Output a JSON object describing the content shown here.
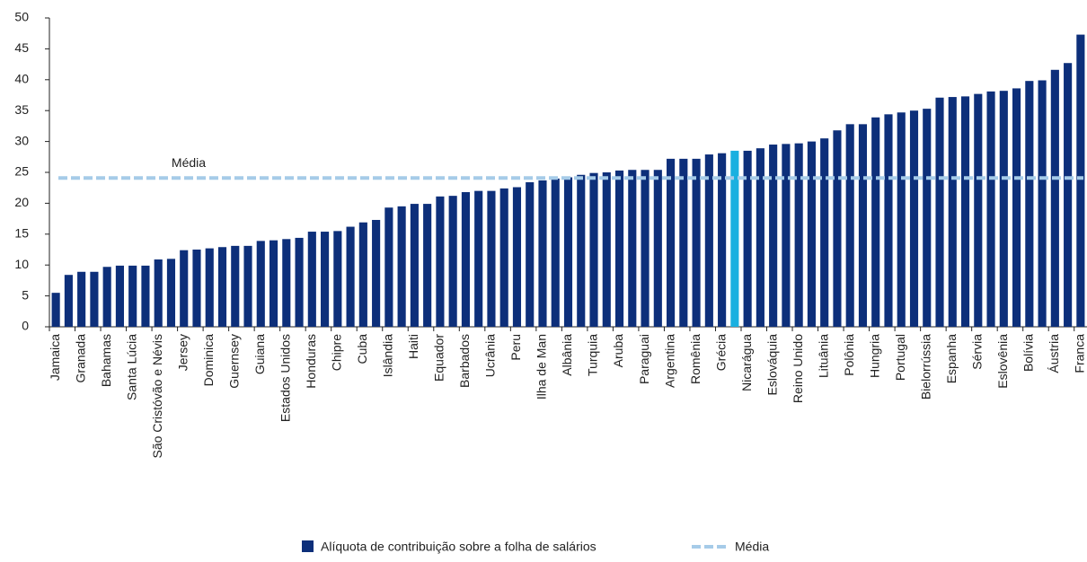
{
  "chart_data": {
    "type": "bar",
    "categories": [
      "Jamaica",
      null,
      "Granada",
      null,
      "Bahamas",
      null,
      "Santa Lúcia",
      null,
      "São Cristóvão e Névis",
      null,
      "Jersey",
      null,
      "Dominica",
      null,
      "Guernsey",
      null,
      "Guiana",
      null,
      "Estados Unidos",
      null,
      "Honduras",
      null,
      "Chipre",
      null,
      "Cuba",
      null,
      "Islândia",
      null,
      "Haiti",
      null,
      "Equador",
      null,
      "Barbados",
      null,
      "Ucrânia",
      null,
      "Peru",
      null,
      "Ilha de Man",
      null,
      "Albânia",
      null,
      "Turquia",
      null,
      "Aruba",
      null,
      "Paraguai",
      null,
      "Argentina",
      null,
      "Romênia",
      null,
      "Grécia",
      null,
      "Nicarágua",
      null,
      "Eslováquia",
      null,
      "Reino Unido",
      null,
      "Lituânia",
      null,
      "Polônia",
      null,
      "Hungria",
      null,
      "Portugal",
      null,
      "Bielorrússia",
      null,
      "Espanha",
      null,
      "Sérvia",
      null,
      "Eslovênia",
      null,
      "Bolívia",
      null,
      "Áustria",
      null,
      "Franca"
    ],
    "series": [
      {
        "name": "Alíquota de contribuição sobre a folha de salários",
        "color": "#0d2f7a",
        "values": [
          5.5,
          8.4,
          8.9,
          8.9,
          9.7,
          9.9,
          9.9,
          9.9,
          10.9,
          11.0,
          12.4,
          12.5,
          12.7,
          12.9,
          13.1,
          13.1,
          13.9,
          14.0,
          14.2,
          14.4,
          15.4,
          15.4,
          15.5,
          16.2,
          16.9,
          17.3,
          19.3,
          19.5,
          19.9,
          19.9,
          21.1,
          21.2,
          21.8,
          22.0,
          22.0,
          22.4,
          22.6,
          23.4,
          23.7,
          24.0,
          24.2,
          24.6,
          24.9,
          25.0,
          25.3,
          25.4,
          25.4,
          25.4,
          27.2,
          27.2,
          27.2,
          27.9,
          28.1,
          28.5,
          28.5,
          28.9,
          29.5,
          29.6,
          29.7,
          30.0,
          30.5,
          31.8,
          32.8,
          32.8,
          33.9,
          34.4,
          34.7,
          35.0,
          35.3,
          37.1,
          37.2,
          37.3,
          37.7,
          38.1,
          38.2,
          38.6,
          39.8,
          39.9,
          41.6,
          42.7,
          47.3
        ]
      }
    ],
    "highlight_index": 53,
    "highlight_color": "#1ab0e0",
    "mean": {
      "name": "Média",
      "value": 24.1,
      "color": "#a6cbe8"
    },
    "ylim": [
      0,
      50
    ],
    "yticks": [
      0,
      5,
      10,
      15,
      20,
      25,
      30,
      35,
      40,
      45,
      50
    ],
    "grid": false
  }
}
